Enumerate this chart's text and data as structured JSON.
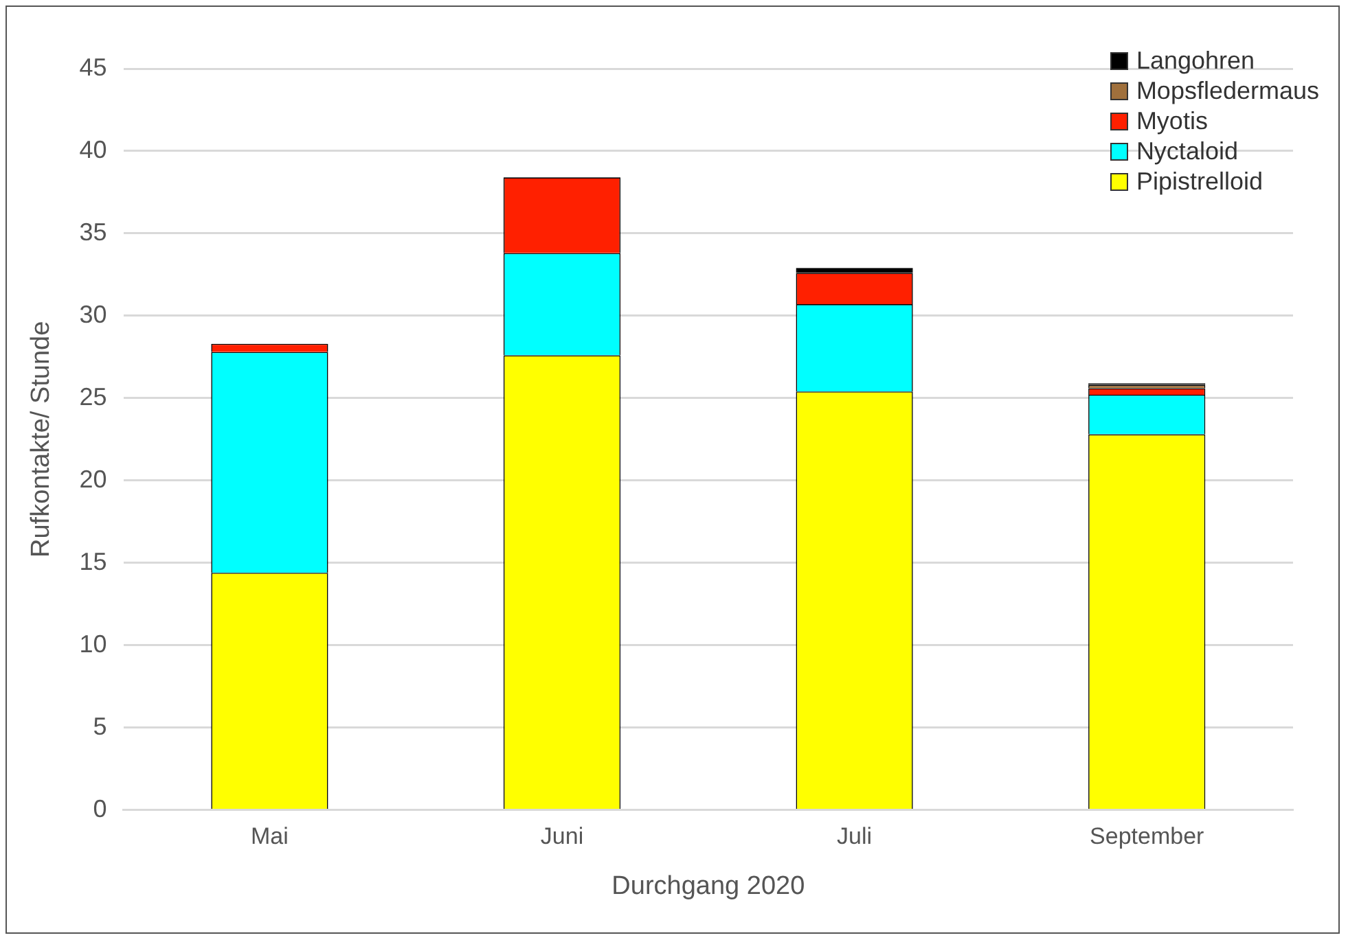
{
  "chart_data": {
    "type": "bar",
    "stacked": true,
    "xlabel": "Durchgang 2020",
    "ylabel": "Rufkontakte/ Stunde",
    "categories": [
      "Mai",
      "Juni",
      "Juli",
      "September"
    ],
    "series": [
      {
        "name": "Pipistrelloid",
        "color": "#ffff00",
        "values": [
          14.4,
          27.6,
          25.4,
          22.8
        ]
      },
      {
        "name": "Nyctaloid",
        "color": "#00ffff",
        "values": [
          13.4,
          6.2,
          5.3,
          2.4
        ]
      },
      {
        "name": "Myotis",
        "color": "#ff2000",
        "values": [
          0.5,
          4.6,
          1.9,
          0.4
        ]
      },
      {
        "name": "Mopsfledermaus",
        "color": "#a0703c",
        "values": [
          0,
          0,
          0,
          0.2
        ]
      },
      {
        "name": "Langohren",
        "color": "#000000",
        "values": [
          0,
          0,
          0.3,
          0.1
        ]
      }
    ],
    "ylim": [
      0,
      45
    ],
    "yticks": [
      0,
      5,
      10,
      15,
      20,
      25,
      30,
      35,
      40,
      45
    ],
    "grid": "y",
    "legend": "top right"
  }
}
